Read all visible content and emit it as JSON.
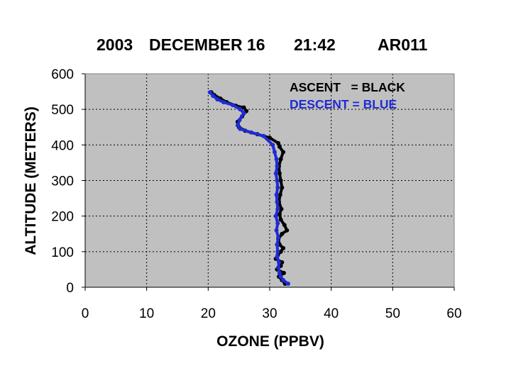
{
  "title": {
    "year": "2003",
    "date": "DECEMBER 16",
    "time": "21:42",
    "station": "AR011"
  },
  "legend": {
    "ascent": "ASCENT   = BLACK",
    "descent": "DESCENT = BLUE"
  },
  "colors": {
    "ascent": "#000000",
    "descent": "#1f2bd6",
    "plot_bg": "#c0c0c0",
    "grid": "#000000"
  },
  "chart_data": {
    "type": "scatter",
    "xlabel": "OZONE (PPBV)",
    "ylabel": "ALTITUDE (METERS)",
    "xlim": [
      0,
      60
    ],
    "ylim": [
      0,
      600
    ],
    "xticks": [
      "0",
      "10",
      "20",
      "30",
      "40",
      "50",
      "60"
    ],
    "yticks": [
      "0",
      "100",
      "200",
      "300",
      "400",
      "500",
      "600"
    ],
    "grid": true,
    "legend_position": "top-right",
    "series": [
      {
        "name": "ASCENT",
        "color": "black",
        "x": [
          32.5,
          32.0,
          31.5,
          32.3,
          31.2,
          31.8,
          32.0,
          31.0,
          31.3,
          31.8,
          32.2,
          31.6,
          31.4,
          32.0,
          32.8,
          32.4,
          31.8,
          31.6,
          31.9,
          31.5,
          31.7,
          32.0,
          31.8,
          31.6,
          31.5,
          31.8,
          32.2,
          31.6,
          31.4,
          30.0,
          28.0,
          26.0,
          25.0,
          24.8,
          25.5,
          26.2,
          25.8,
          24.5,
          23.0,
          22.0,
          21.0,
          20.5
        ],
        "y": [
          10,
          20,
          30,
          40,
          50,
          60,
          70,
          80,
          90,
          100,
          110,
          120,
          135,
          150,
          160,
          175,
          190,
          205,
          220,
          240,
          260,
          280,
          300,
          320,
          340,
          360,
          380,
          395,
          405,
          420,
          430,
          440,
          450,
          465,
          480,
          495,
          505,
          510,
          520,
          530,
          540,
          548
        ]
      },
      {
        "name": "DESCENT",
        "color": "blue",
        "x": [
          33.0,
          32.2,
          31.8,
          31.6,
          31.4,
          31.5,
          31.2,
          31.3,
          31.2,
          31.4,
          31.1,
          31.3,
          31.0,
          31.3,
          31.2,
          31.1,
          31.3,
          31.2,
          31.0,
          31.2,
          31.1,
          30.8,
          30.5,
          29.0,
          27.0,
          25.2,
          24.8,
          25.1,
          25.8,
          25.2,
          24.0,
          22.5,
          21.5,
          20.8,
          20.3
        ],
        "y": [
          10,
          20,
          30,
          40,
          55,
          70,
          85,
          100,
          120,
          140,
          160,
          180,
          200,
          220,
          240,
          260,
          280,
          300,
          320,
          340,
          360,
          380,
          400,
          425,
          435,
          445,
          455,
          470,
          490,
          500,
          512,
          520,
          528,
          538,
          548
        ]
      }
    ]
  }
}
